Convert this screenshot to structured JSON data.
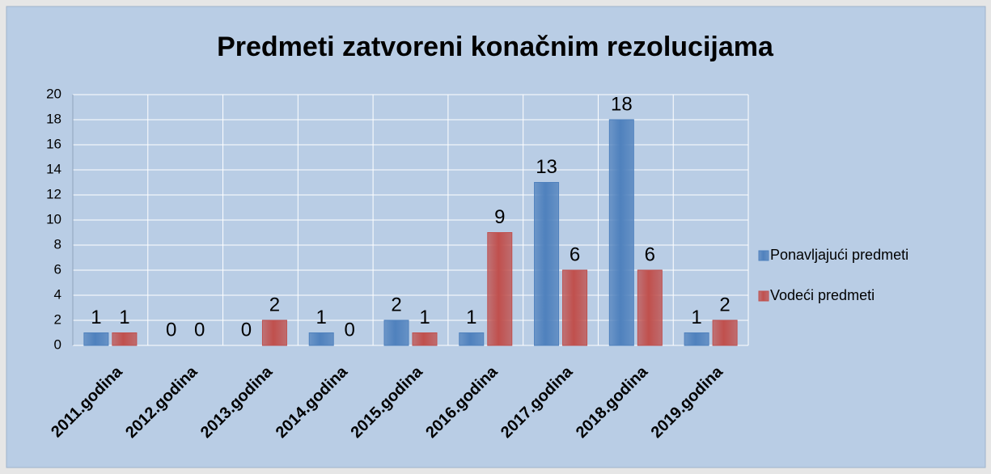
{
  "chart_data": {
    "type": "bar",
    "title": "Predmeti zatvoreni konačnim rezolucijama",
    "categories": [
      "2011.godina",
      "2012.godina",
      "2013.godina",
      "2014.godina",
      "2015.godina",
      "2016.godina",
      "2017.godina",
      "2018.godina",
      "2019.godina"
    ],
    "series": [
      {
        "name": "Ponavljajući predmeti",
        "color": "#4f81bd",
        "values": [
          1,
          0,
          0,
          1,
          2,
          1,
          13,
          18,
          1
        ]
      },
      {
        "name": "Vodeći predmeti",
        "color": "#c0504d",
        "values": [
          1,
          0,
          2,
          0,
          1,
          9,
          6,
          6,
          2
        ]
      }
    ],
    "ylim": [
      0,
      20
    ],
    "yticks": [
      0,
      2,
      4,
      6,
      8,
      10,
      12,
      14,
      16,
      18,
      20
    ],
    "grid": true,
    "legend": "right"
  }
}
